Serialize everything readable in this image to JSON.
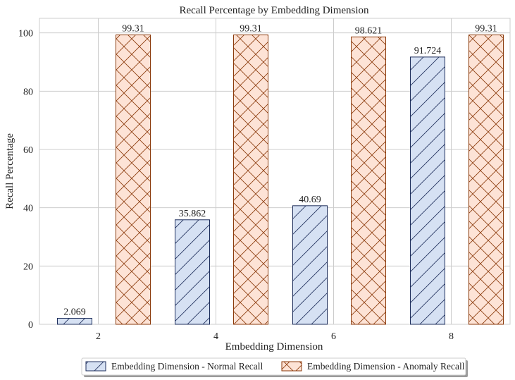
{
  "chart_data": {
    "type": "bar",
    "title": "Recall Percentage by Embedding Dimension",
    "xlabel": "Embedding Dimension",
    "ylabel": "Recall Percentage",
    "categories": [
      "2",
      "4",
      "6",
      "8"
    ],
    "ylim": [
      0,
      105
    ],
    "yticks": [
      0,
      20,
      40,
      60,
      80,
      100
    ],
    "grid": true,
    "legend_position": "bottom-center",
    "series": [
      {
        "name": "Embedding Dimension - Normal Recall",
        "values": [
          2.069,
          35.862,
          40.69,
          91.724
        ],
        "labels": [
          "2.069",
          "35.862",
          "40.69",
          "91.724"
        ],
        "fill": "#d6e1f3",
        "stroke": "#1f2f5c",
        "hatch": "diagonal"
      },
      {
        "name": "Embedding Dimension - Anomaly Recall",
        "values": [
          99.31,
          99.31,
          98.621,
          99.31
        ],
        "labels": [
          "99.31",
          "99.31",
          "98.621",
          "99.31"
        ],
        "fill": "#fde3d6",
        "stroke": "#8b3a0b",
        "hatch": "cross"
      }
    ]
  }
}
